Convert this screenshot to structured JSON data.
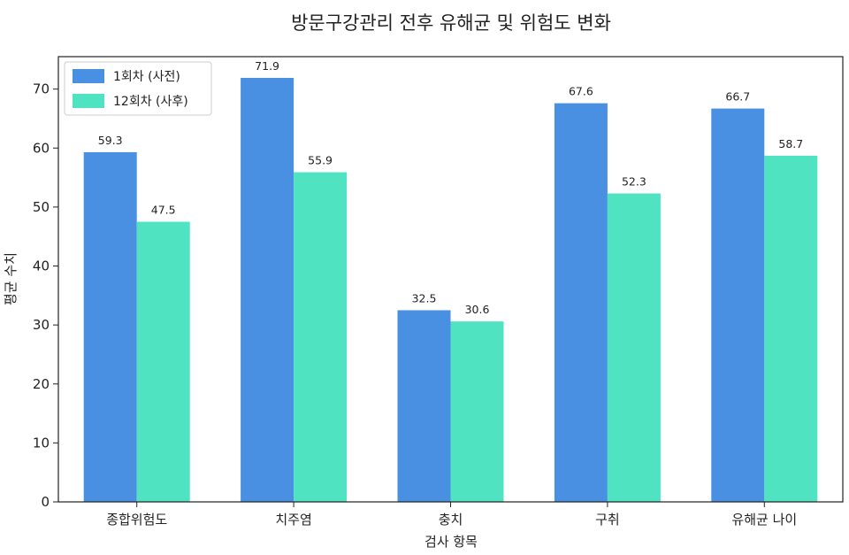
{
  "chart_data": {
    "type": "bar",
    "title": "방문구강관리 전후 유해균 및 위험도 변화",
    "xlabel": "검사 항목",
    "ylabel": "평균 수치",
    "categories": [
      "종합위험도",
      "치주염",
      "충치",
      "구취",
      "유해균 나이"
    ],
    "series": [
      {
        "name": "1회차 (사전)",
        "values": [
          59.3,
          71.9,
          32.5,
          67.6,
          66.7
        ],
        "color": "#4a90e2"
      },
      {
        "name": "12회차 (사후)",
        "values": [
          47.5,
          55.9,
          30.6,
          52.3,
          58.7
        ],
        "color": "#50e3c2"
      }
    ],
    "ylim": [
      0,
      75.5
    ],
    "yticks": [
      0,
      10,
      20,
      30,
      40,
      50,
      60,
      70
    ],
    "legend": "top-left",
    "grid": false
  }
}
